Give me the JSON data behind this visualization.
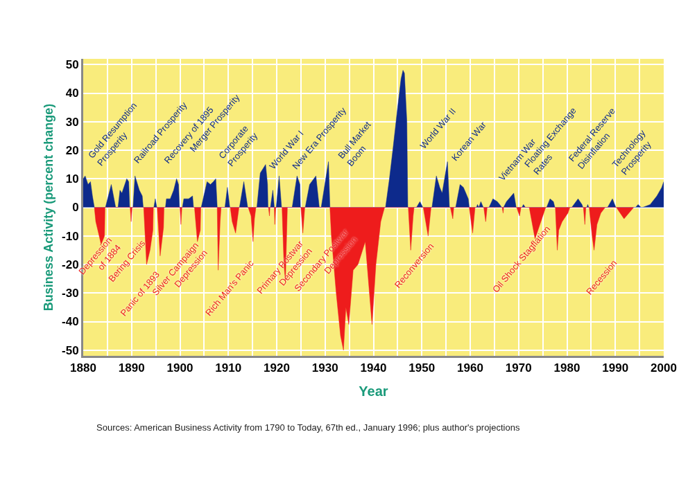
{
  "chart_data": {
    "type": "area",
    "xlabel": "Year",
    "ylabel": "Business Activity (percent change)",
    "xlim": [
      1880,
      2000
    ],
    "xticks": [
      1880,
      {
        "value": 1885,
        "label": null
      },
      1890,
      {
        "value": 1895,
        "label": null
      },
      1900,
      {
        "value": 1905,
        "label": null
      },
      1910,
      {
        "value": 1915,
        "label": null
      },
      1920,
      {
        "value": 1925,
        "label": null
      },
      1930,
      {
        "value": 1935,
        "label": null
      },
      1940,
      {
        "value": 1945,
        "label": null
      },
      1950,
      {
        "value": 1955,
        "label": null
      },
      1960,
      {
        "value": 1965,
        "label": null
      },
      1970,
      {
        "value": 1975,
        "label": null
      },
      1980,
      {
        "value": 1985,
        "label": null
      },
      1990,
      {
        "value": 1995,
        "label": null
      },
      2000
    ],
    "ylim": [
      -52,
      52
    ],
    "yticks": [
      -50,
      -40,
      -30,
      -20,
      -10,
      0,
      10,
      20,
      30,
      40,
      50
    ],
    "grid": true,
    "series": [
      {
        "color": "#0d2a8c",
        "x": [
          1880,
          1880.4,
          1881,
          1881.5,
          1881.9,
          1882.3,
          1884.6,
          1885.8,
          1886.7,
          1887.2,
          1887.6,
          1888,
          1889,
          1889.4,
          1889.6,
          1890.3,
          1890.7,
          1891.6,
          1892.2,
          1892.4,
          1894.6,
          1894.9,
          1895.2,
          1897,
          1897.2,
          1898,
          1898.7,
          1899.3,
          1899.7,
          1899.9,
          1900.5,
          1900.8,
          1901.8,
          1902.6,
          1902.8,
          1904.4,
          1905.6,
          1906.3,
          1906.9,
          1907.4,
          1907.7,
          1909.3,
          1909.8,
          1910.3,
          1912.3,
          1913.2,
          1914,
          1915.9,
          1916.6,
          1917.7,
          1918.1,
          1918.2,
          1918.7,
          1919.2,
          1919.5,
          1919.9,
          1920.5,
          1921,
          1923.2,
          1924.2,
          1924.8,
          1924.9,
          1925.9,
          1926.8,
          1928.1,
          1928.8,
          1929.2,
          1930.7,
          1931,
          1942.5,
          1943.3,
          1944,
          1945,
          1945.7,
          1946.1,
          1946.4,
          1946.9,
          1947.1,
          1948.9,
          1949.6,
          1950.2,
          1952.1,
          1953,
          1953.7,
          1954.2,
          1955.3,
          1955.7,
          1957,
          1957.9,
          1958.6,
          1959.6,
          1959.8,
          1961.3,
          1961.5,
          1961.8,
          1962.2,
          1962.7,
          1963.9,
          1964.7,
          1965.6,
          1966.1,
          1966.5,
          1966.9,
          1967.5,
          1969,
          1969.5,
          1970.7,
          1971,
          1971.4,
          1975.8,
          1976.5,
          1977.2,
          1977.5,
          1981,
          1982.3,
          1983.1,
          1983.3,
          1984.1,
          1984.3,
          1984.5,
          1988.4,
          1989.4,
          1990.1,
          1994.2,
          1994.7,
          1995.3,
          1995.7,
          1997.2,
          1998.6,
          1999.6,
          2000
        ],
        "values": [
          10,
          11,
          8,
          9,
          4,
          0,
          0,
          8,
          0,
          0,
          6,
          5,
          10,
          9,
          0,
          0,
          11,
          6,
          4,
          0,
          0,
          3,
          0,
          0,
          3,
          3,
          6,
          10,
          8,
          0,
          0,
          3,
          3,
          4,
          0,
          0,
          9,
          8,
          9,
          10,
          0,
          0,
          7,
          0,
          0,
          9,
          0,
          0,
          12,
          15,
          8,
          0,
          0,
          6,
          0,
          0,
          11,
          0,
          0,
          11,
          8,
          0,
          0,
          8,
          11,
          0,
          0,
          16,
          0,
          0,
          10,
          20,
          35,
          45,
          48,
          47,
          30,
          0,
          0,
          2,
          0,
          0,
          11,
          7,
          5,
          16,
          0,
          0,
          8,
          7,
          3,
          0,
          0,
          1,
          0,
          2,
          0,
          0,
          3,
          2,
          1,
          0,
          0,
          2,
          5,
          0,
          0,
          1,
          0,
          0,
          3,
          2,
          0,
          0,
          3,
          1,
          0,
          0,
          1,
          0,
          0,
          3,
          0,
          0,
          1,
          0,
          0,
          1,
          4,
          7,
          9
        ]
      },
      {
        "color": "#ee1c1c",
        "x": [
          1882.3,
          1882.6,
          1883.3,
          1883.7,
          1884.4,
          1884.5,
          1889.7,
          1889.9,
          1890.1,
          1892.5,
          1893.1,
          1893.8,
          1894.4,
          1894.5,
          1895.3,
          1895.9,
          1896.6,
          1896.7,
          1900,
          1900.2,
          1900.4,
          1903,
          1903.6,
          1904.2,
          1904.3,
          1907.7,
          1907.9,
          1908.3,
          1908.5,
          1910.4,
          1910.8,
          1911.5,
          1911.8,
          1912.2,
          1914.1,
          1914.7,
          1915.1,
          1915.4,
          1915.7,
          1918.3,
          1918.5,
          1918.6,
          1919.5,
          1919.6,
          1919.8,
          1921.1,
          1921.5,
          1921.8,
          1922.2,
          1925,
          1925.4,
          1925.8,
          1931,
          1931.3,
          1932.3,
          1933.2,
          1933.8,
          1934.3,
          1934.9,
          1935.8,
          1936.8,
          1938.3,
          1939.7,
          1940.5,
          1941.5,
          1942.3,
          1947.2,
          1947.7,
          1948.2,
          1948.4,
          1950.3,
          1951.3,
          1951.9,
          1955.9,
          1956.4,
          1956.6,
          1959.8,
          1960.5,
          1961,
          1962.8,
          1963.2,
          1963.5,
          1966.6,
          1966.8,
          1966.9,
          1969.6,
          1970.2,
          1970.5,
          1972.2,
          1973.4,
          1974.6,
          1975.6,
          1977.6,
          1978,
          1978.3,
          1979,
          1980.2,
          1980.6,
          1983.4,
          1983.7,
          1983.9,
          1984.6,
          1985.2,
          1985.6,
          1986.2,
          1987,
          1987.9,
          1990.2,
          1991.8,
          1993.8
        ],
        "values": [
          0,
          -5,
          -10,
          -13,
          -10,
          0,
          0,
          -5,
          0,
          0,
          -20,
          -15,
          -8,
          0,
          0,
          -17,
          -7,
          0,
          0,
          -6,
          0,
          0,
          -12,
          -8,
          0,
          0,
          -22,
          -5,
          0,
          0,
          -5,
          -9,
          -5,
          0,
          0,
          -3,
          -12,
          -4,
          0,
          0,
          -3,
          0,
          0,
          -6,
          0,
          0,
          -20,
          -26,
          0,
          0,
          -9,
          0,
          0,
          -10,
          -30,
          -45,
          -50,
          -35,
          -41,
          -22,
          -20,
          -12,
          -41,
          -20,
          -5,
          0,
          0,
          -15,
          -3,
          0,
          0,
          -10,
          0,
          0,
          -4,
          0,
          0,
          -9,
          0,
          0,
          -5,
          0,
          0,
          -2,
          0,
          0,
          -3,
          0,
          0,
          -11,
          -5,
          0,
          0,
          -15,
          -8,
          -5,
          -2,
          0,
          0,
          -6,
          0,
          0,
          -10,
          -15,
          -6,
          -2,
          0,
          0,
          -4,
          0
        ]
      }
    ],
    "annotations": [
      "Gold Resumption\nProsperity",
      "Railroad Prosperity",
      "Recovery of 1895",
      "Merger Prosperity",
      "Corporate\nProsperity",
      "World War I",
      "New Era Prosperity",
      "Bull Market\nBoom",
      "World War II",
      "Korean War",
      "Vietnam War",
      "Floating Exchange\nRates",
      "Federal Reserve\nDisinflation",
      "Technology\nProsperity",
      "Depression\nof 1884",
      "Bering Crisis",
      "Panic of 1893",
      "Silver Campaign\nDepression",
      "Rich Man's Panic",
      "Primary Postwar\nDepression",
      "Secondary Postwar\nDepression",
      "Reconversion",
      "Oil Shock Stagflation",
      "Recession",
      "Sources: American Business Activity from 1790 to Today, 67th ed., January 1996; plus author's projections"
    ]
  }
}
